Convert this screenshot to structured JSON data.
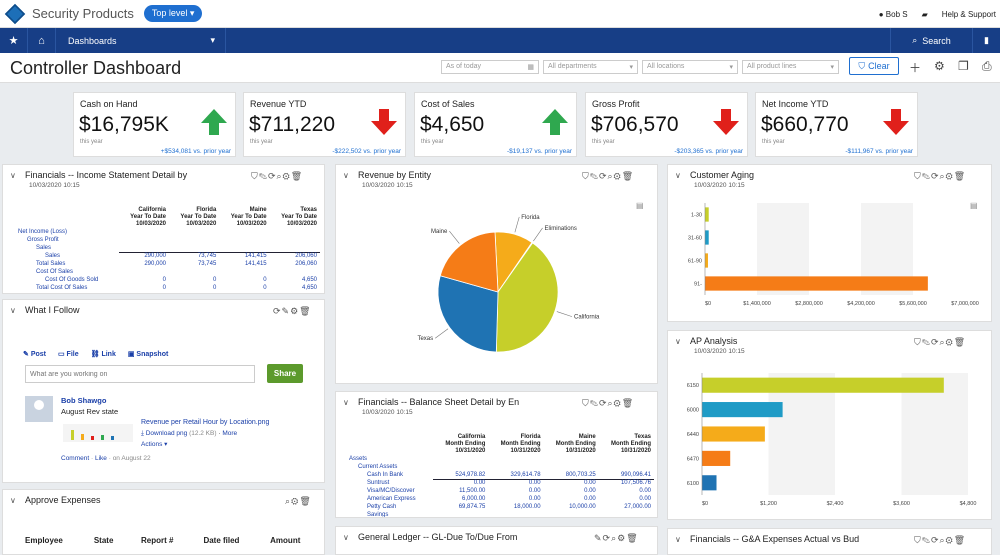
{
  "app": {
    "product": "Security Products",
    "scope_label": "Top level"
  },
  "topbar": {
    "user": "Bob S",
    "help": "Help & Support"
  },
  "nav": {
    "dashboards": "Dashboards",
    "search": "Search"
  },
  "page": {
    "title": "Controller Dashboard"
  },
  "filters": {
    "date_placeholder": "As of today",
    "departments_placeholder": "All departments",
    "locations_placeholder": "All locations",
    "product_lines_placeholder": "All product lines",
    "clear_label": "Clear"
  },
  "kpis": [
    {
      "label": "Cash on Hand",
      "value": "$16,795K",
      "sub": "this year",
      "compare": "+$534,081 vs. prior year",
      "trend": "up",
      "color": "#2fa84f"
    },
    {
      "label": "Revenue YTD",
      "value": "$711,220",
      "sub": "this year",
      "compare": "-$222,502 vs. prior year",
      "trend": "down",
      "color": "#e0201b"
    },
    {
      "label": "Cost of Sales",
      "value": "$4,650",
      "sub": "this year",
      "compare": "-$19,137 vs. prior year",
      "trend": "up",
      "color": "#2fa84f"
    },
    {
      "label": "Gross Profit",
      "value": "$706,570",
      "sub": "this year",
      "compare": "-$203,365 vs. prior year",
      "trend": "down",
      "color": "#e0201b"
    },
    {
      "label": "Net Income YTD",
      "value": "$660,770",
      "sub": "this year",
      "compare": "-$111,967 vs. prior year",
      "trend": "down",
      "color": "#e0201b"
    }
  ],
  "income_statement": {
    "title": "Financials -- Income Statement Detail by",
    "date": "10/03/2020 10:15",
    "columns": [
      {
        "l1": "California",
        "l2": "Year To Date",
        "l3": "10/03/2020"
      },
      {
        "l1": "Florida",
        "l2": "Year To Date",
        "l3": "10/03/2020"
      },
      {
        "l1": "Maine",
        "l2": "Year To Date",
        "l3": "10/03/2020"
      },
      {
        "l1": "Texas",
        "l2": "Year To Date",
        "l3": "10/03/2020"
      }
    ],
    "rows": [
      {
        "label": "Net Income (Loss)",
        "indent": 0,
        "values": [
          "",
          "",
          "",
          ""
        ]
      },
      {
        "label": "Gross Profit",
        "indent": 1,
        "values": [
          "",
          "",
          "",
          ""
        ]
      },
      {
        "label": "Sales",
        "indent": 2,
        "values": [
          "",
          "",
          "",
          ""
        ]
      },
      {
        "label": "Sales",
        "indent": 3,
        "values": [
          "290,000",
          "73,745",
          "141,415",
          "206,060"
        ]
      },
      {
        "label": "Total Sales",
        "indent": 2,
        "values": [
          "290,000",
          "73,745",
          "141,415",
          "206,060"
        ]
      },
      {
        "label": "Cost Of Sales",
        "indent": 2,
        "values": [
          "",
          "",
          "",
          ""
        ]
      },
      {
        "label": "Cost Of Goods Sold",
        "indent": 3,
        "values": [
          "0",
          "0",
          "0",
          "4,650"
        ]
      },
      {
        "label": "Total Cost Of Sales",
        "indent": 2,
        "values": [
          "0",
          "0",
          "0",
          "4,650"
        ]
      }
    ]
  },
  "follow": {
    "title": "What I Follow",
    "tabs": [
      "Post",
      "File",
      "Link",
      "Snapshot"
    ],
    "input_placeholder": "What are you working on",
    "share_label": "Share",
    "post_author": "Bob Shawgo",
    "post_text": "August Rev state",
    "file_name": "Revenue per Retail Hour by Location.png",
    "download": "Download png",
    "size": "(12.2 KB)",
    "more": "More",
    "actions": "Actions",
    "comment": "Comment",
    "like": "Like",
    "date": "on August 22"
  },
  "approve": {
    "title": "Approve Expenses",
    "columns": [
      "Employee",
      "State",
      "Report #",
      "Date filed",
      "Amount"
    ]
  },
  "revenue_entity": {
    "title": "Revenue by Entity",
    "date": "10/03/2020 10:15",
    "chart_data": {
      "type": "pie",
      "categories": [
        "Florida",
        "Eliminations",
        "California",
        "Texas",
        "Maine"
      ],
      "values": [
        10.4,
        0.2,
        40.8,
        29.0,
        19.9
      ],
      "colors": [
        "#f5ab1a",
        "#9bbb3b",
        "#c6cf2a",
        "#1f73b3",
        "#f57c17"
      ]
    }
  },
  "balance_sheet": {
    "title": "Financials -- Balance Sheet Detail by En",
    "date": "10/03/2020 10:15",
    "columns": [
      {
        "l1": "California",
        "l2": "Month Ending",
        "l3": "10/31/2020"
      },
      {
        "l1": "Florida",
        "l2": "Month Ending",
        "l3": "10/31/2020"
      },
      {
        "l1": "Maine",
        "l2": "Month Ending",
        "l3": "10/31/2020"
      },
      {
        "l1": "Texas",
        "l2": "Month Ending",
        "l3": "10/31/2020"
      }
    ],
    "rows": [
      {
        "label": "Assets",
        "indent": 0,
        "values": [
          "",
          "",
          "",
          ""
        ]
      },
      {
        "label": "Current Assets",
        "indent": 1,
        "values": [
          "",
          "",
          "",
          ""
        ]
      },
      {
        "label": "Cash In Bank",
        "indent": 2,
        "values": [
          "524,978.82",
          "329,614.78",
          "800,703.25",
          "990,096.41"
        ]
      },
      {
        "label": "Suntrust",
        "indent": 2,
        "values": [
          "0.00",
          "0.00",
          "0.00",
          "107,506.76"
        ]
      },
      {
        "label": "Visa/MC/Discover",
        "indent": 2,
        "values": [
          "11,500.00",
          "0.00",
          "0.00",
          "0.00"
        ]
      },
      {
        "label": "American Express",
        "indent": 2,
        "values": [
          "6,000.00",
          "0.00",
          "0.00",
          "0.00"
        ]
      },
      {
        "label": "Petty Cash",
        "indent": 2,
        "values": [
          "69,874.75",
          "18,000.00",
          "10,000.00",
          "27,000.00"
        ]
      },
      {
        "label": "Savings",
        "indent": 2,
        "values": [
          "",
          "",
          "",
          ""
        ]
      }
    ]
  },
  "general_ledger": {
    "title": "General Ledger -- GL-Due To/Due From"
  },
  "customer_aging": {
    "title": "Customer Aging",
    "date": "10/03/2020 10:15",
    "chart_data": {
      "type": "bar",
      "orientation": "horizontal",
      "categories": [
        "1-30",
        "31-60",
        "61-90",
        "91-"
      ],
      "values": [
        100000,
        100000,
        80000,
        6000000
      ],
      "colors": [
        "#c6cf2a",
        "#1f9bc6",
        "#f5ab1a",
        "#f57c17"
      ],
      "xlim": [
        0,
        7000000
      ],
      "xticks": [
        "$0",
        "$1,400,000",
        "$2,800,000",
        "$4,200,000",
        "$5,600,000",
        "$7,000,000"
      ]
    }
  },
  "ap_analysis": {
    "title": "AP Analysis",
    "date": "10/03/2020 10:15",
    "chart_data": {
      "type": "bar",
      "orientation": "horizontal",
      "categories": [
        "6150",
        "6000",
        "6440",
        "6470",
        "6100"
      ],
      "values": [
        3000,
        1000,
        780,
        350,
        180
      ],
      "colors": [
        "#c6cf2a",
        "#1f9bc6",
        "#f5ab1a",
        "#f57c17",
        "#1f73b3"
      ],
      "xlim": [
        0,
        3000
      ],
      "xticks": [
        "$0",
        "$1,200",
        "$2,400",
        "$3,600",
        "$4,800"
      ]
    }
  },
  "ga_expenses": {
    "title": "Financials -- G&A Expenses Actual vs Bud"
  }
}
